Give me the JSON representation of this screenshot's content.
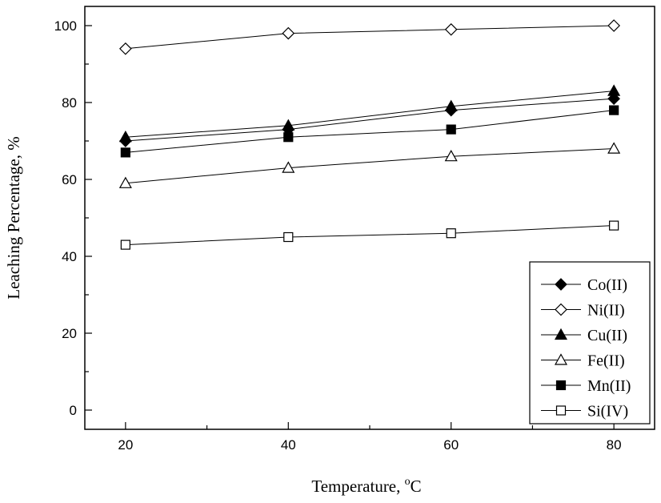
{
  "chart_data": {
    "type": "line",
    "title": "",
    "xlabel": "Temperature, ",
    "xlabel_sup": "o",
    "xlabel_unit": "C",
    "ylabel": "Leaching Percentage, %",
    "xlim": [
      15,
      85
    ],
    "ylim": [
      -5,
      105
    ],
    "x_ticks": [
      20,
      40,
      60,
      80
    ],
    "y_ticks": [
      0,
      20,
      40,
      60,
      80,
      100
    ],
    "x": [
      20,
      40,
      60,
      80
    ],
    "grid": false,
    "legend_position": "bottom-right",
    "series": [
      {
        "name": "Co(II)",
        "marker": "diamond-filled",
        "values": [
          70,
          73,
          78,
          81
        ]
      },
      {
        "name": "Ni(II)",
        "marker": "diamond-open",
        "values": [
          94,
          98,
          99,
          100
        ]
      },
      {
        "name": "Cu(II)",
        "marker": "triangle-filled",
        "values": [
          71,
          74,
          79,
          83
        ]
      },
      {
        "name": "Fe(II)",
        "marker": "triangle-open",
        "values": [
          59,
          63,
          66,
          68
        ]
      },
      {
        "name": "Mn(II)",
        "marker": "square-filled",
        "values": [
          67,
          71,
          73,
          78
        ]
      },
      {
        "name": "Si(IV)",
        "marker": "square-open",
        "values": [
          43,
          45,
          46,
          48
        ]
      }
    ]
  }
}
